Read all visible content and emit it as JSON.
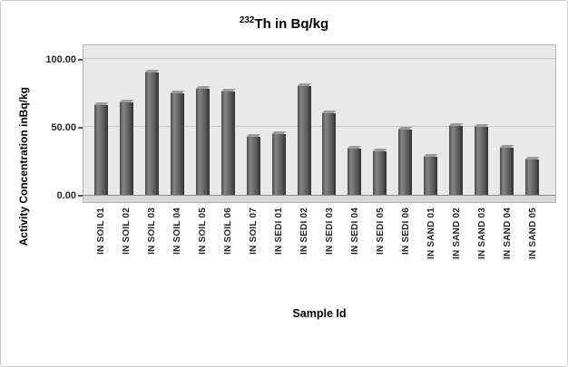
{
  "title": {
    "superscript": "232",
    "text": "Th in Bq/kg"
  },
  "chart_data": {
    "type": "bar",
    "title": "232Th in Bq/kg",
    "xlabel": "Sample Id",
    "ylabel": "Activity Concentration inBq/kg",
    "ylim": [
      0,
      110
    ],
    "grid": true,
    "legend": "none",
    "bar_color": "#5a5a5a",
    "plot_background": "#e9e9e9",
    "yticks": [
      {
        "value": 0,
        "label": "0.00"
      },
      {
        "value": 50,
        "label": "50.00"
      },
      {
        "value": 100,
        "label": "100.00"
      }
    ],
    "categories": [
      "IN SOIL 01",
      "IN SOIL 02",
      "IN SOIL 03",
      "IN SOIL 04",
      "IN SOIL 05",
      "IN SOIL 06",
      "IN SOIL 07",
      "IN SEDI 01",
      "IN SEDI 02",
      "IN SEDI 03",
      "IN SEDI 04",
      "IN SEDI 05",
      "IN SEDI 06",
      "IN SAND 01",
      "IN SAND 02",
      "IN SAND 03",
      "IN SAND 04",
      "IN SAND 05"
    ],
    "values": [
      66,
      68,
      90,
      75,
      78,
      76,
      43,
      45,
      80,
      60,
      34,
      32,
      48,
      28,
      51,
      50,
      35,
      26
    ]
  }
}
